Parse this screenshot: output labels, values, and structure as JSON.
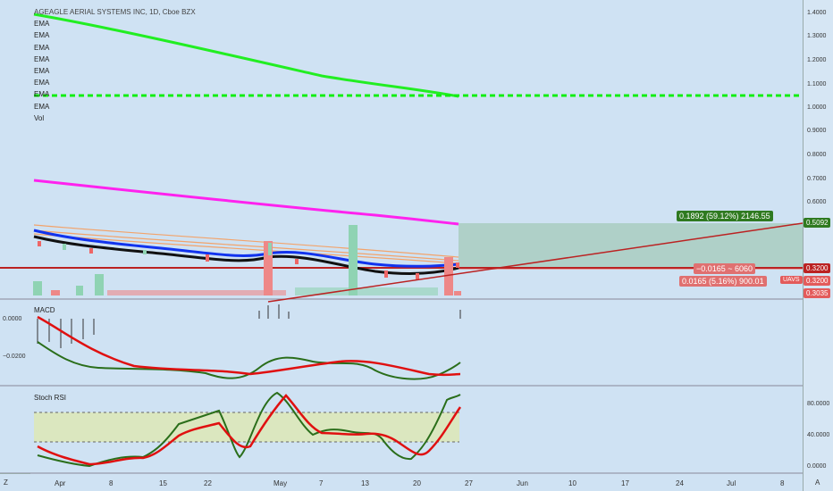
{
  "main": {
    "title": "AGEAGLE AERIAL SYSTEMS INC, 1D, Cboe BZX",
    "legend": [
      "EMA",
      "EMA",
      "EMA",
      "EMA",
      "EMA",
      "EMA",
      "EMA",
      "EMA",
      "Vol"
    ],
    "price_ticks": [
      "1.4000",
      "1.3000",
      "1.2000",
      "1.1000",
      "1.0000",
      "0.9000",
      "0.8000",
      "0.7000",
      "0.6000"
    ],
    "tag_top": "0.5092",
    "tag_320": "0.3200",
    "tag_uavs_sym": "UAVS",
    "tag_uavs_val": "0.3200",
    "tag_3035": "0.3035",
    "long_label": "0.1892 (59.12%) 2146.55",
    "range_label": "−0.0165 ~ 6060",
    "pct_label": "0.0165 (5.16%) 900.01",
    "colors": {
      "green_ema": "#22ee22",
      "magenta_ema": "#ff22ee",
      "bg": "#cfe2f3"
    }
  },
  "macd": {
    "title": "MACD",
    "ticks": [
      "0.0000",
      "−0.0200"
    ]
  },
  "stoch": {
    "title": "Stoch RSI",
    "ticks": [
      "80.0000",
      "40.0000",
      "0.0000"
    ]
  },
  "time_axis": [
    "Apr",
    "8",
    "15",
    "22",
    "May",
    "7",
    "13",
    "20",
    "27",
    "Jun",
    "10",
    "17",
    "24",
    "Jul",
    "8"
  ],
  "corner": {
    "left": "Z",
    "right": "A"
  }
}
